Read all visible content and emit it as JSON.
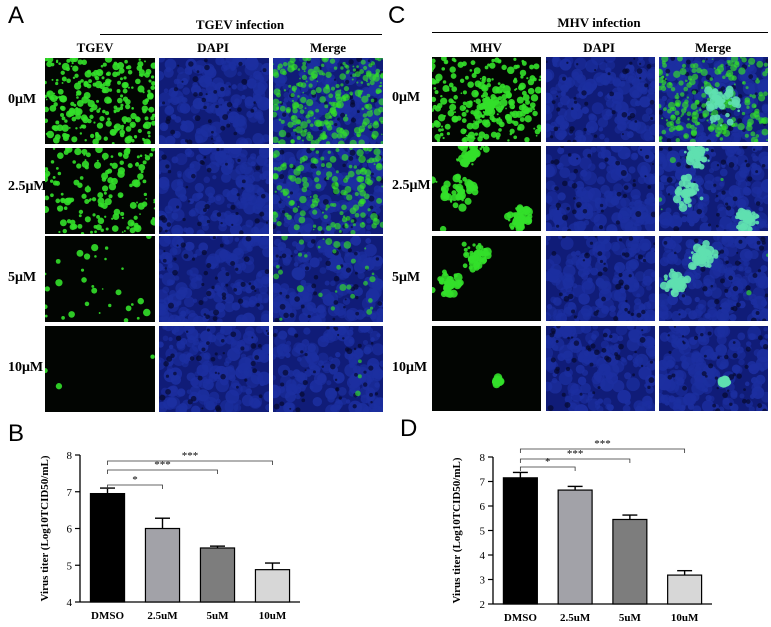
{
  "panels": {
    "A": {
      "letter": "A",
      "title": "TGEV infection",
      "columns": [
        "TGEV",
        "DAPI",
        "Merge"
      ],
      "rows": [
        "0μM",
        "2.5μM",
        "5μM",
        "10μM"
      ]
    },
    "C": {
      "letter": "C",
      "title": "MHV infection",
      "columns": [
        "MHV",
        "DAPI",
        "Merge"
      ],
      "rows": [
        "0μM",
        "2.5μM",
        "5μM",
        "10μM"
      ]
    },
    "B": {
      "letter": "B"
    },
    "D": {
      "letter": "D"
    }
  },
  "colors": {
    "dapi_blue": "#1c2fa0",
    "infection_green": "#33e02a",
    "bar_dmso": "#000000",
    "bar_2_5": "#a2a2a8",
    "bar_5": "#7d7d7d",
    "bar_10": "#d7d7d7"
  },
  "chart_data": [
    {
      "panel": "B",
      "type": "bar",
      "title": "",
      "xlabel": "",
      "ylabel": "Virus titer (Log10TCID50/mL)",
      "categories": [
        "DMSO",
        "2.5uM",
        "5uM",
        "10uM"
      ],
      "values": [
        6.95,
        6.0,
        5.47,
        4.88
      ],
      "errors": [
        0.15,
        0.28,
        0.05,
        0.18
      ],
      "ylim": [
        4,
        8
      ],
      "yticks": [
        "4",
        "5",
        "6",
        "7",
        "8"
      ],
      "significance": [
        {
          "from": "DMSO",
          "to": "2.5uM",
          "label": "*"
        },
        {
          "from": "DMSO",
          "to": "5uM",
          "label": "***"
        },
        {
          "from": "DMSO",
          "to": "10uM",
          "label": "***"
        }
      ],
      "grid": false
    },
    {
      "panel": "D",
      "type": "bar",
      "title": "",
      "xlabel": "",
      "ylabel": "Virus titer (Log10TCID50/mL)",
      "categories": [
        "DMSO",
        "2.5uM",
        "5uM",
        "10uM"
      ],
      "values": [
        7.15,
        6.65,
        5.45,
        3.18
      ],
      "errors": [
        0.22,
        0.15,
        0.18,
        0.18
      ],
      "ylim": [
        2,
        8
      ],
      "yticks": [
        "2",
        "3",
        "4",
        "5",
        "6",
        "7",
        "8"
      ],
      "significance": [
        {
          "from": "DMSO",
          "to": "2.5uM",
          "label": "*"
        },
        {
          "from": "DMSO",
          "to": "5uM",
          "label": "***"
        },
        {
          "from": "DMSO",
          "to": "10uM",
          "label": "***"
        }
      ],
      "grid": false
    }
  ]
}
